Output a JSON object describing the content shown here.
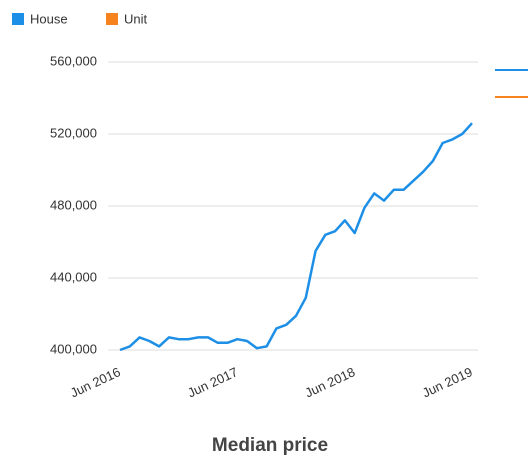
{
  "chart_data": {
    "type": "line",
    "title": "Median price",
    "categories": [
      "Jun 2016",
      null,
      null,
      null,
      null,
      null,
      null,
      null,
      null,
      null,
      null,
      null,
      "Jun 2017",
      null,
      null,
      null,
      null,
      null,
      null,
      null,
      null,
      null,
      null,
      null,
      "Jun 2018",
      null,
      null,
      null,
      null,
      null,
      null,
      null,
      null,
      null,
      null,
      null,
      "Jun 2019"
    ],
    "series": [
      {
        "name": "House",
        "color": "#1e8fe6",
        "values": [
          400000,
          402000,
          407000,
          405000,
          402000,
          407000,
          406000,
          406000,
          407000,
          407000,
          404000,
          404000,
          406000,
          405000,
          401000,
          402000,
          412000,
          414000,
          419000,
          429000,
          455000,
          464000,
          466000,
          472000,
          465000,
          479000,
          487000,
          483000,
          489000,
          489000,
          494000,
          499000,
          505000,
          515000,
          517000,
          520000,
          526000
        ]
      },
      {
        "name": "Unit",
        "color": "#f7831e",
        "values": [
          null,
          null,
          null,
          null,
          null,
          null,
          null,
          null,
          null,
          null,
          null,
          null,
          null,
          null,
          null,
          null,
          null,
          null,
          null,
          null,
          null,
          null,
          null,
          null,
          null,
          null,
          null,
          null,
          null,
          null,
          null,
          null,
          null,
          null,
          null,
          null,
          null
        ]
      }
    ],
    "ylim": [
      400000,
      560000
    ],
    "yticks": [
      {
        "value": 400000,
        "label": "400,000"
      },
      {
        "value": 440000,
        "label": "440,000"
      },
      {
        "value": 480000,
        "label": "480,000"
      },
      {
        "value": 520000,
        "label": "520,000"
      },
      {
        "value": 560000,
        "label": "560,000"
      }
    ],
    "grid": true
  }
}
